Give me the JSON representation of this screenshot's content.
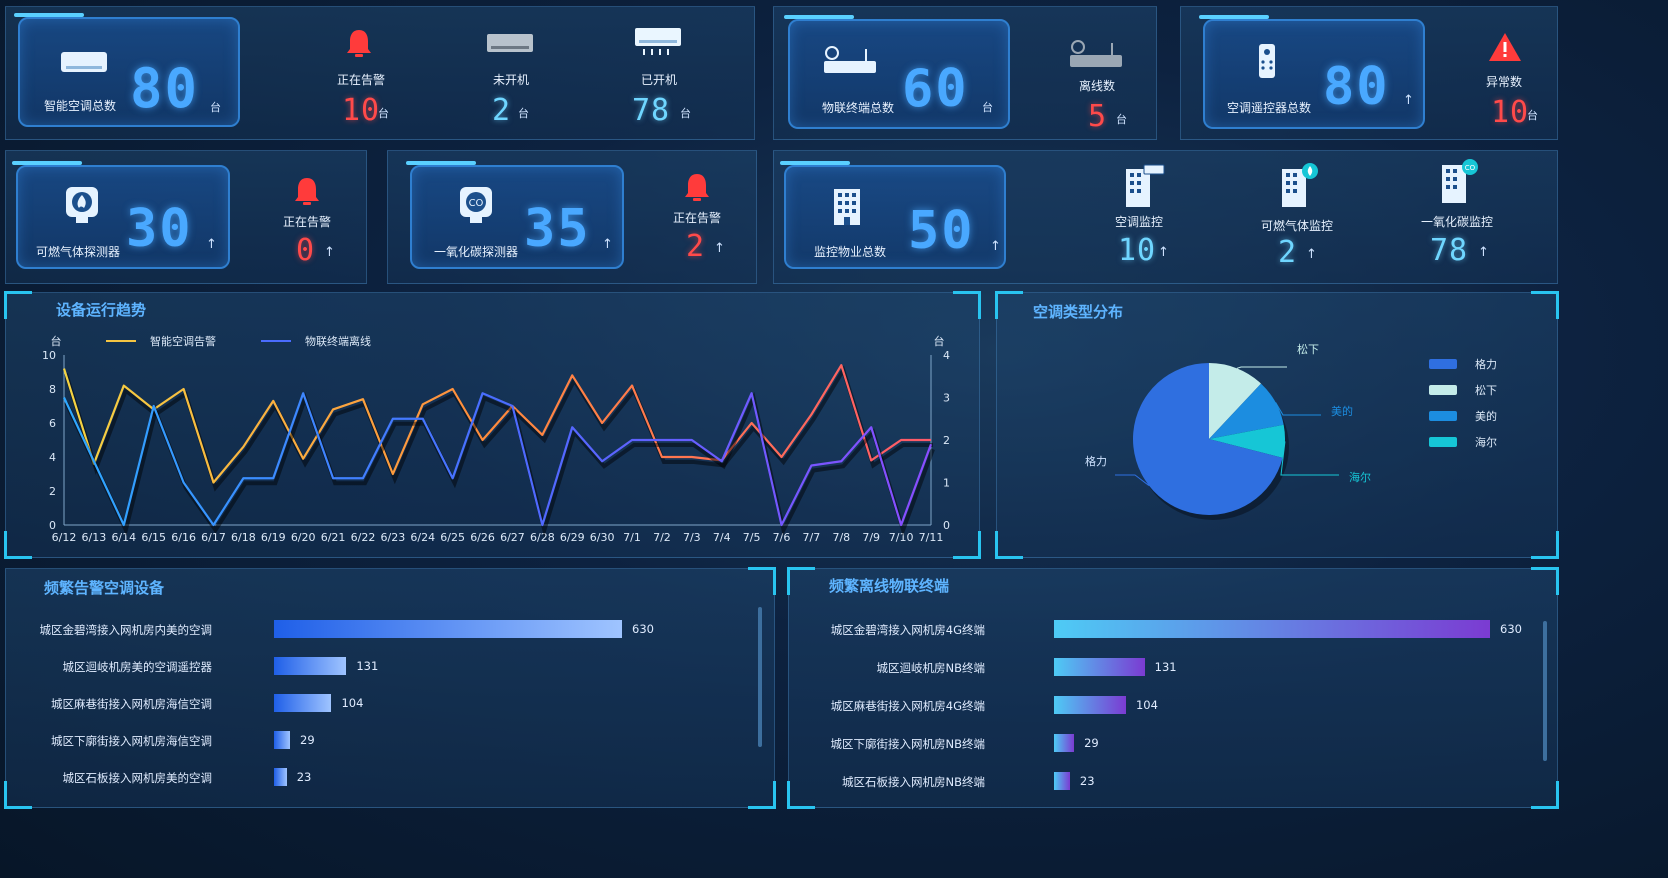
{
  "row1": {
    "ac": {
      "label": "智能空调总数",
      "value": "80",
      "unit": "台"
    },
    "ac_alarm": {
      "label": "正在告警",
      "value": "10",
      "unit": "台"
    },
    "ac_off": {
      "label": "未开机",
      "value": "2",
      "unit": "台"
    },
    "ac_on": {
      "label": "已开机",
      "value": "78",
      "unit": "台"
    },
    "iot": {
      "label": "物联终端总数",
      "value": "60",
      "unit": "台"
    },
    "iot_offline": {
      "label": "离线数",
      "value": "5",
      "unit": "台"
    },
    "remote": {
      "label": "空调遥控器总数",
      "value": "80",
      "arrow": "↑"
    },
    "remote_abn": {
      "label": "异常数",
      "value": "10",
      "unit": "台"
    }
  },
  "row2": {
    "gas": {
      "label": "可燃气体探测器",
      "value": "30",
      "arrow": "↑"
    },
    "gas_alarm": {
      "label": "正在告警",
      "value": "0",
      "arrow": "↑"
    },
    "co": {
      "label": "一氧化碳探测器",
      "value": "35",
      "arrow": "↑"
    },
    "co_alarm": {
      "label": "正在告警",
      "value": "2",
      "arrow": "↑"
    },
    "prop": {
      "label": "监控物业总数",
      "value": "50",
      "arrow": "↑"
    },
    "ac_mon": {
      "label": "空调监控",
      "value": "10",
      "arrow": "↑"
    },
    "gas_mon": {
      "label": "可燃气体监控",
      "value": "2",
      "arrow": "↑"
    },
    "co_mon": {
      "label": "一氧化碳监控",
      "value": "78",
      "arrow": "↑"
    }
  },
  "colors": {
    "accent": "#49a8ff",
    "alarm": "#ff4a4a",
    "cyan": "#29c4f0"
  },
  "trend": {
    "title": "设备运行趋势",
    "chart_data": {
      "type": "line",
      "y_unit_left": "台",
      "y_unit_right": "台",
      "ylim_left": [
        0,
        10
      ],
      "ylim_right": [
        0,
        4
      ],
      "yticks_left": [
        "0",
        "2",
        "4",
        "6",
        "8",
        "10"
      ],
      "yticks_right": [
        "0",
        "1",
        "2",
        "3",
        "4"
      ],
      "categories": [
        "6/12",
        "6/13",
        "6/14",
        "6/15",
        "6/16",
        "6/17",
        "6/18",
        "6/19",
        "6/20",
        "6/21",
        "6/22",
        "6/23",
        "6/24",
        "6/25",
        "6/26",
        "6/27",
        "6/28",
        "6/29",
        "6/30",
        "7/1",
        "7/2",
        "7/3",
        "7/4",
        "7/5",
        "7/6",
        "7/7",
        "7/8",
        "7/9",
        "7/10",
        "7/11"
      ],
      "series": [
        {
          "name": "智能空调告警",
          "axis": "left",
          "color": "#f5c542",
          "values": [
            9.2,
            3.6,
            8.2,
            6.8,
            8.0,
            2.5,
            4.6,
            7.3,
            3.9,
            6.8,
            7.4,
            3.0,
            7.1,
            8.0,
            5.0,
            7.0,
            5.3,
            8.8,
            6.0,
            8.2,
            4.0,
            4.0,
            3.8,
            6.0,
            4.0,
            6.5,
            9.4,
            3.8,
            5.0,
            5.0
          ]
        },
        {
          "name": "物联终端离线",
          "axis": "right",
          "color": "#4a6cff",
          "values": [
            3.0,
            1.5,
            0.0,
            2.8,
            1.0,
            0.0,
            1.1,
            1.1,
            3.1,
            1.1,
            1.1,
            2.5,
            2.5,
            1.1,
            3.1,
            2.8,
            0.0,
            2.3,
            1.5,
            2.0,
            2.0,
            2.0,
            1.5,
            3.1,
            0.0,
            1.4,
            1.5,
            2.3,
            0.0,
            1.9
          ]
        }
      ]
    }
  },
  "pie": {
    "title": "空调类型分布",
    "chart_data": {
      "type": "pie",
      "slices": [
        {
          "name": "格力",
          "value": 71,
          "color": "#2f6fe0"
        },
        {
          "name": "松下",
          "value": 12,
          "color": "#c4ece9"
        },
        {
          "name": "美的",
          "value": 10,
          "color": "#1c8de0"
        },
        {
          "name": "海尔",
          "value": 7,
          "color": "#16c6d6"
        }
      ]
    }
  },
  "ac_bars": {
    "title": "频繁告警空调设备",
    "chart_data": {
      "type": "bar",
      "categories": [
        "城区金碧湾接入网机房内美的空调",
        "城区迴岐机房美的空调遥控器",
        "城区麻巷街接入网机房海信空调",
        "城区下廓街接入网机房海信空调",
        "城区石板接入网机房美的空调"
      ],
      "values": [
        630,
        131,
        104,
        29,
        23
      ]
    }
  },
  "iot_bars": {
    "title": "频繁离线物联终端",
    "chart_data": {
      "type": "bar",
      "categories": [
        "城区金碧湾接入网机房4G终端",
        "城区迴岐机房NB终端",
        "城区麻巷街接入网机房4G终端",
        "城区下廓街接入网机房NB终端",
        "城区石板接入网机房NB终端"
      ],
      "values": [
        630,
        131,
        104,
        29,
        23
      ]
    }
  }
}
